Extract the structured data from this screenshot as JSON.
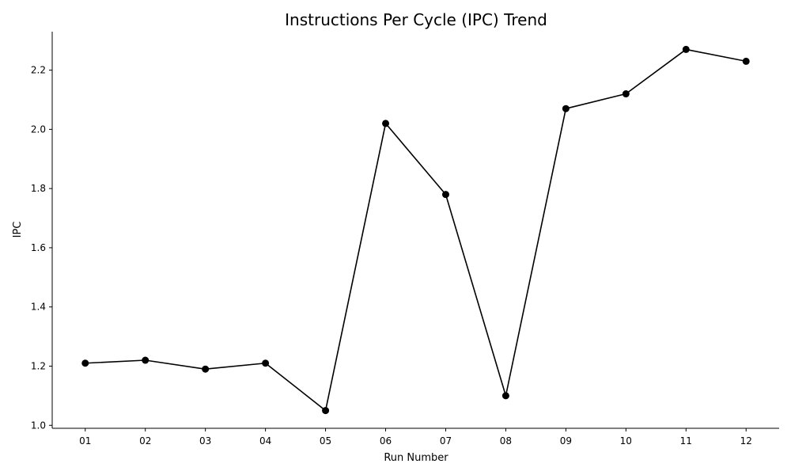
{
  "chart_data": {
    "type": "line",
    "title": "Instructions Per Cycle (IPC) Trend",
    "xlabel": "Run Number",
    "ylabel": "IPC",
    "categories": [
      "01",
      "02",
      "03",
      "04",
      "05",
      "06",
      "07",
      "08",
      "09",
      "10",
      "11",
      "12"
    ],
    "series": [
      {
        "values": [
          1.21,
          1.22,
          1.19,
          1.21,
          1.05,
          2.02,
          1.78,
          1.1,
          2.07,
          2.12,
          2.27,
          2.23
        ]
      }
    ],
    "ylim": [
      0.99,
      2.33
    ],
    "yticks": [
      1.0,
      1.2,
      1.4,
      1.6,
      1.8,
      2.0,
      2.2
    ],
    "ytick_labels": [
      "1.0",
      "1.2",
      "1.4",
      "1.6",
      "1.8",
      "2.0",
      "2.2"
    ],
    "grid": false,
    "legend": "none",
    "colors": {
      "line": "#000000",
      "marker": "#000000",
      "axis": "#000000"
    }
  }
}
